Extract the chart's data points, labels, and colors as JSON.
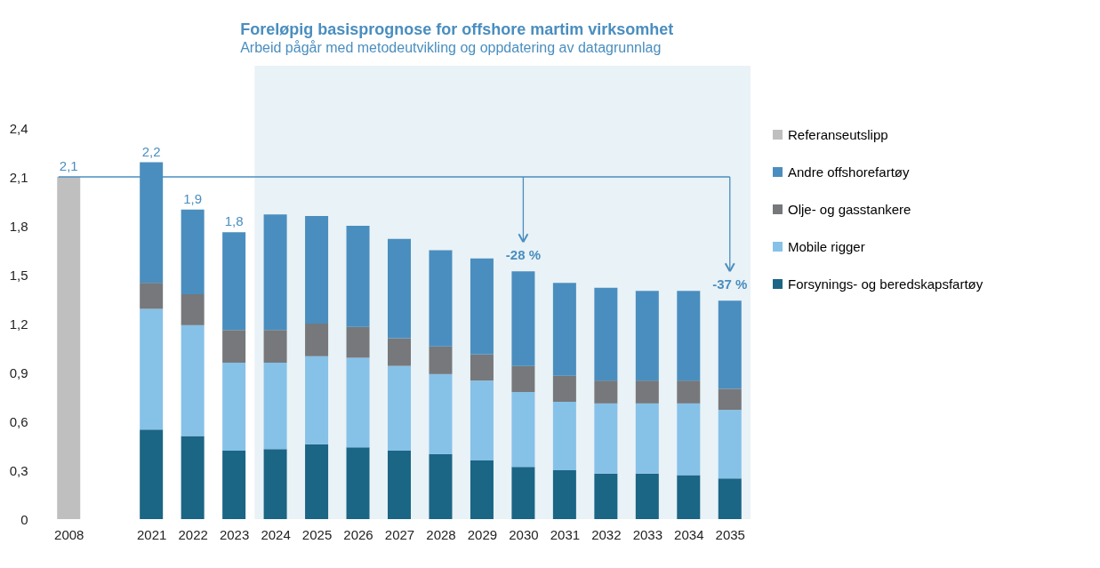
{
  "chart_data": {
    "type": "bar",
    "stacked": true,
    "title": "Foreløpig basisprognose for offshore martim virksomhet",
    "subtitle": "Arbeid pågår med metodeutvikling og oppdatering av datagrunnlag",
    "categories": [
      "2008",
      null,
      "2021",
      "2022",
      "2023",
      "2024",
      "2025",
      "2026",
      "2027",
      "2028",
      "2029",
      "2030",
      "2031",
      "2032",
      "2033",
      "2034",
      "2035"
    ],
    "series": [
      {
        "name": "Forsynings- og beredskapsfartøy",
        "color": "#1b6585",
        "values": [
          null,
          null,
          0.55,
          0.51,
          0.42,
          0.43,
          0.46,
          0.44,
          0.42,
          0.4,
          0.36,
          0.32,
          0.3,
          0.28,
          0.28,
          0.27,
          0.25
        ]
      },
      {
        "name": "Mobile rigger",
        "color": "#86c1e8",
        "values": [
          null,
          null,
          0.74,
          0.68,
          0.54,
          0.53,
          0.54,
          0.55,
          0.52,
          0.49,
          0.49,
          0.46,
          0.42,
          0.43,
          0.43,
          0.44,
          0.42
        ]
      },
      {
        "name": "Olje- og gasstankere",
        "color": "#76787b",
        "values": [
          null,
          null,
          0.16,
          0.19,
          0.2,
          0.2,
          0.2,
          0.19,
          0.17,
          0.17,
          0.16,
          0.16,
          0.16,
          0.14,
          0.14,
          0.14,
          0.13
        ]
      },
      {
        "name": "Andre offshorefartøy",
        "color": "#4a8ebf",
        "values": [
          null,
          null,
          0.74,
          0.52,
          0.6,
          0.71,
          0.66,
          0.62,
          0.61,
          0.59,
          0.59,
          0.58,
          0.57,
          0.57,
          0.55,
          0.55,
          0.54
        ]
      },
      {
        "name": "Referanseutslipp",
        "color": "#bfbfbf",
        "values": [
          2.1,
          null,
          null,
          null,
          null,
          null,
          null,
          null,
          null,
          null,
          null,
          null,
          null,
          null,
          null,
          null,
          null
        ]
      }
    ],
    "totals": [
      "2,1",
      null,
      "2,2",
      "1,9",
      "1,8",
      null,
      null,
      null,
      null,
      null,
      null,
      null,
      null,
      null,
      null,
      null,
      null
    ],
    "ylim": [
      0,
      2.4
    ],
    "yticks": [
      0,
      {
        "value": 0.3,
        "label": "0,3"
      },
      {
        "value": 0.6,
        "label": "0,6"
      },
      {
        "value": 0.9,
        "label": "0,9"
      },
      {
        "value": 1.2,
        "label": "1,2"
      },
      {
        "value": 1.5,
        "label": "1,5"
      },
      {
        "value": 1.8,
        "label": "1,8"
      },
      {
        "value": 2.1,
        "label": "2,1"
      },
      {
        "value": 2.4,
        "label": "2,4"
      }
    ],
    "ref_lines": [
      {
        "axis": "y",
        "value": 2.1,
        "color": "#4a8ebf"
      }
    ],
    "bands": [
      {
        "axis": "x",
        "from": "2024",
        "to": "2035",
        "color": "#e9f2f6"
      }
    ],
    "annotations": [
      {
        "text": "-28 %",
        "x": "2030",
        "y": 1.52
      },
      {
        "text": "-37 %",
        "x": "2035",
        "y": 1.34
      }
    ],
    "legend": "right",
    "grid": false
  }
}
